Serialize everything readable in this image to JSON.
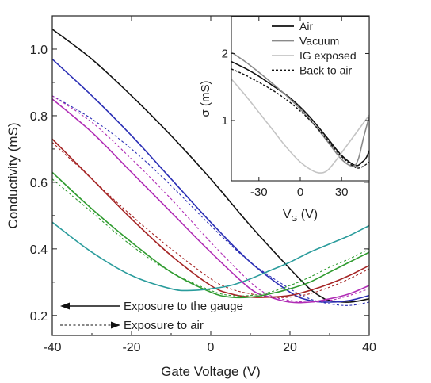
{
  "chart_data": [
    {
      "type": "line",
      "xlabel": "Gate Voltage (V)",
      "ylabel": "Conductivity (mS)",
      "xlim": [
        -40,
        40
      ],
      "ylim": [
        0.14,
        1.1
      ],
      "x_ticks": [
        -40,
        -20,
        0,
        20,
        40
      ],
      "y_ticks": [
        0.2,
        0.4,
        0.6,
        0.8,
        1.0
      ],
      "x_tick_labels": [
        "-40",
        "-20",
        "0",
        "20",
        "40"
      ],
      "y_tick_labels": [
        "0.2",
        "0.4",
        "0.6",
        "0.8",
        "1.0"
      ],
      "legend": {
        "position": "bottom-left",
        "entries": [
          {
            "label": "Exposure to the gauge",
            "style": "solid-arrow-left"
          },
          {
            "label": "Exposure to air",
            "style": "dashed-arrow-right"
          }
        ]
      },
      "series": [
        {
          "color": "#111111",
          "style": "solid",
          "x": [
            -40,
            -30,
            -20,
            -10,
            0,
            10,
            20,
            25,
            28,
            30,
            35,
            40
          ],
          "y": [
            1.06,
            0.97,
            0.86,
            0.74,
            0.61,
            0.47,
            0.34,
            0.28,
            0.255,
            0.245,
            0.24,
            0.25
          ]
        },
        {
          "color": "#2b2fb5",
          "style": "solid",
          "x": [
            -40,
            -30,
            -20,
            -10,
            0,
            10,
            20,
            25,
            30,
            35,
            40
          ],
          "y": [
            0.97,
            0.86,
            0.74,
            0.61,
            0.48,
            0.36,
            0.27,
            0.245,
            0.24,
            0.245,
            0.26
          ]
        },
        {
          "color": "#2b2fb5",
          "style": "dashed",
          "x": [
            -40,
            -30,
            -20,
            -10,
            0,
            10,
            20,
            25,
            30,
            35,
            40
          ],
          "y": [
            0.86,
            0.79,
            0.7,
            0.59,
            0.47,
            0.36,
            0.28,
            0.25,
            0.235,
            0.23,
            0.24
          ]
        },
        {
          "color": "#b02cb5",
          "style": "solid",
          "x": [
            -40,
            -30,
            -20,
            -10,
            0,
            10,
            15,
            20,
            25,
            30,
            35,
            40
          ],
          "y": [
            0.85,
            0.75,
            0.63,
            0.51,
            0.39,
            0.28,
            0.255,
            0.24,
            0.24,
            0.25,
            0.265,
            0.29
          ]
        },
        {
          "color": "#b02cb5",
          "style": "dashed",
          "x": [
            -40,
            -30,
            -20,
            -10,
            0,
            10,
            15,
            20,
            25,
            30,
            35,
            40
          ],
          "y": [
            0.86,
            0.78,
            0.67,
            0.55,
            0.42,
            0.3,
            0.26,
            0.245,
            0.24,
            0.245,
            0.26,
            0.28
          ]
        },
        {
          "color": "#a52525",
          "style": "solid",
          "x": [
            -40,
            -30,
            -20,
            -10,
            0,
            5,
            10,
            15,
            20,
            25,
            30,
            35,
            40
          ],
          "y": [
            0.73,
            0.61,
            0.49,
            0.38,
            0.29,
            0.265,
            0.255,
            0.255,
            0.26,
            0.275,
            0.295,
            0.32,
            0.35
          ]
        },
        {
          "color": "#a52525",
          "style": "dashed",
          "x": [
            -40,
            -30,
            -20,
            -10,
            0,
            5,
            10,
            15,
            20,
            25,
            30,
            35,
            40
          ],
          "y": [
            0.72,
            0.61,
            0.5,
            0.4,
            0.31,
            0.28,
            0.265,
            0.255,
            0.255,
            0.265,
            0.285,
            0.31,
            0.34
          ]
        },
        {
          "color": "#2f9b2f",
          "style": "solid",
          "x": [
            -40,
            -30,
            -20,
            -10,
            0,
            5,
            10,
            15,
            20,
            25,
            30,
            35,
            40
          ],
          "y": [
            0.63,
            0.52,
            0.42,
            0.33,
            0.27,
            0.255,
            0.255,
            0.265,
            0.28,
            0.3,
            0.33,
            0.36,
            0.39
          ]
        },
        {
          "color": "#2f9b2f",
          "style": "dashed",
          "x": [
            -40,
            -30,
            -20,
            -10,
            0,
            5,
            10,
            15,
            20,
            25,
            30,
            35,
            40
          ],
          "y": [
            0.61,
            0.51,
            0.41,
            0.33,
            0.275,
            0.26,
            0.26,
            0.27,
            0.29,
            0.315,
            0.345,
            0.37,
            0.4
          ]
        },
        {
          "color": "#2a9c9c",
          "style": "solid",
          "x": [
            -40,
            -30,
            -20,
            -10,
            -5,
            0,
            5,
            10,
            15,
            20,
            25,
            30,
            35,
            40
          ],
          "y": [
            0.48,
            0.39,
            0.32,
            0.28,
            0.275,
            0.28,
            0.29,
            0.31,
            0.335,
            0.36,
            0.39,
            0.415,
            0.44,
            0.47
          ]
        }
      ]
    },
    {
      "type": "line",
      "xlabel_main": "V",
      "xlabel_sub": "G",
      "xlabel_unit": "(V)",
      "ylabel": "σ (mS)",
      "xlim": [
        -50,
        50
      ],
      "ylim": [
        0.1,
        2.55
      ],
      "x_ticks": [
        -30,
        0,
        30
      ],
      "y_ticks": [
        1,
        2
      ],
      "x_tick_labels": [
        "-30",
        "0",
        "30"
      ],
      "y_tick_labels": [
        "1",
        "2"
      ],
      "legend": {
        "position": "top-right",
        "entries": [
          {
            "label": "Air",
            "color": "#111111",
            "style": "solid"
          },
          {
            "label": "Vacuum",
            "color": "#8a8a8a",
            "style": "solid"
          },
          {
            "label": "IG exposed",
            "color": "#c4c4c4",
            "style": "solid"
          },
          {
            "label": "Back to air",
            "color": "#111111",
            "style": "dashed"
          }
        ]
      },
      "series": [
        {
          "name": "Air",
          "color": "#111111",
          "style": "solid",
          "x": [
            -50,
            -40,
            -30,
            -20,
            -10,
            0,
            10,
            20,
            30,
            40,
            45,
            48,
            50
          ],
          "y": [
            1.88,
            1.78,
            1.66,
            1.52,
            1.38,
            1.2,
            0.98,
            0.73,
            0.48,
            0.33,
            0.38,
            0.45,
            0.55
          ]
        },
        {
          "name": "Vacuum",
          "color": "#8a8a8a",
          "style": "solid",
          "x": [
            -50,
            -40,
            -30,
            -20,
            -10,
            0,
            10,
            20,
            30,
            38,
            42,
            46,
            50
          ],
          "y": [
            2.02,
            1.88,
            1.72,
            1.55,
            1.37,
            1.17,
            0.94,
            0.68,
            0.42,
            0.32,
            0.42,
            0.75,
            1.06
          ]
        },
        {
          "name": "IG exposed",
          "color": "#c4c4c4",
          "style": "solid",
          "x": [
            -50,
            -40,
            -30,
            -20,
            -10,
            0,
            10,
            16,
            20,
            25,
            30,
            40,
            50
          ],
          "y": [
            1.62,
            1.38,
            1.12,
            0.86,
            0.6,
            0.38,
            0.24,
            0.22,
            0.26,
            0.38,
            0.52,
            0.8,
            1.08
          ]
        },
        {
          "name": "Back to air",
          "color": "#111111",
          "style": "dashed",
          "x": [
            -50,
            -40,
            -30,
            -20,
            -10,
            0,
            10,
            20,
            30,
            40,
            45,
            50
          ],
          "y": [
            1.77,
            1.68,
            1.57,
            1.45,
            1.31,
            1.14,
            0.94,
            0.7,
            0.46,
            0.3,
            0.31,
            0.38
          ]
        }
      ]
    }
  ]
}
